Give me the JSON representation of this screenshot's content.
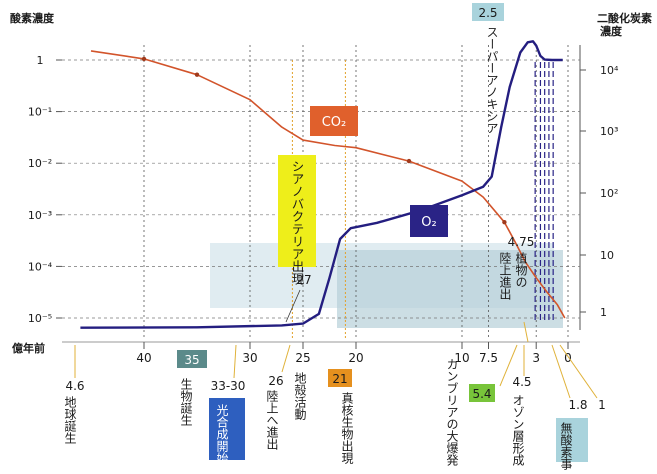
{
  "chart_data": {
    "type": "line",
    "xlabel": "億年前",
    "ylabel_left": "酸素濃度",
    "ylabel_right": "二酸化炭素濃度",
    "x_axis": {
      "reversed": true,
      "range": [
        46,
        0
      ],
      "ticks": [
        "40",
        "30",
        "25",
        "20",
        "10",
        "7.5",
        "3",
        "0"
      ]
    },
    "y_left_ticks": [
      "1",
      "10⁻¹",
      "10⁻²",
      "10⁻³",
      "10⁻⁴",
      "10⁻⁵"
    ],
    "y_right_ticks": [
      "10⁴",
      "10³",
      "10²",
      "10",
      "1"
    ],
    "scale": "log",
    "grid": true,
    "series": [
      {
        "name": "CO₂",
        "label": "CO₂",
        "color": "#d2542b",
        "x": [
          45,
          40,
          35,
          30,
          27,
          25,
          22,
          20,
          15,
          10,
          8,
          6,
          5,
          4,
          3,
          2,
          1,
          0.3
        ],
        "y": [
          1.5,
          1.05,
          0.52,
          0.17,
          0.05,
          0.028,
          0.022,
          0.02,
          0.011,
          0.0045,
          0.0022,
          0.00072,
          0.0003,
          0.00012,
          6e-05,
          3.2e-05,
          1.8e-05,
          1e-05
        ]
      },
      {
        "name": "O₂",
        "label": "O₂",
        "color": "#241e80",
        "x": [
          46,
          35,
          27,
          25,
          23.5,
          22.5,
          21.5,
          20.5,
          18,
          14,
          10,
          8,
          7.2,
          6.3,
          5.5,
          4.5,
          3.8,
          3.3,
          3.0,
          2.6,
          2.2,
          1.5,
          0.5
        ],
        "y": [
          6.5e-06,
          6.6e-06,
          7.2e-06,
          7.8e-06,
          1.2e-05,
          6e-05,
          0.00034,
          0.00055,
          0.0007,
          0.0012,
          0.0024,
          0.0035,
          0.0055,
          0.05,
          0.3,
          1.4,
          2.2,
          2.3,
          1.9,
          1.2,
          1.02,
          1.0,
          1.0
        ]
      }
    ],
    "top_label": "2.5",
    "series_labels": {
      "co2": "CO₂",
      "o2": "O₂"
    },
    "annotations": {
      "cyano": "シアノバクテリア出現",
      "cyano_value": "27",
      "superanoxia": "スーパーアノキシア",
      "plants_value": "4.75",
      "plants_text": "植物の陸上進出"
    },
    "bottom_events": {
      "earth": {
        "value": "4.6",
        "text": "地球誕生"
      },
      "life": {
        "value": "35",
        "text": "生物誕生"
      },
      "photosynthesis": {
        "value": "33-30",
        "text": "光合成開始"
      },
      "landing": {
        "value": "26",
        "text": "陸上へ進出"
      },
      "crust": {
        "value": "",
        "text": "地殻活動"
      },
      "eukaryote": {
        "value": "21",
        "text": "真核生物出現"
      },
      "cambrian": {
        "value": "5.4",
        "text": "カンブリアの大爆発"
      },
      "ozone": {
        "value": "4.5",
        "text": "オゾン層形成"
      },
      "anoxic": {
        "value": "1.8",
        "text": "無酸素事件"
      },
      "one": {
        "value": "1",
        "text": ""
      }
    }
  }
}
